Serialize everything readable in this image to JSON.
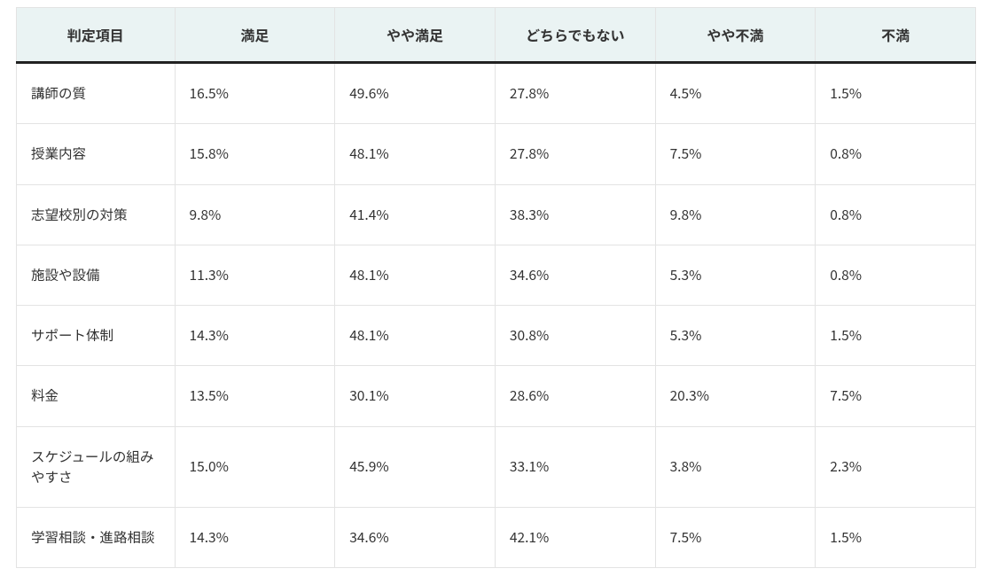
{
  "table": {
    "type": "table",
    "background_color": "#ffffff",
    "header_bg_color": "#eaf3f3",
    "border_color": "#e3e3e3",
    "header_bottom_border_color": "#222222",
    "text_color": "#333333",
    "header_fontsize": 16,
    "body_fontsize": 15.5,
    "header_font_weight": 700,
    "columns": [
      {
        "label": "判定項目",
        "width_pct": 16.5,
        "align": "center"
      },
      {
        "label": "満足",
        "width_pct": 16.7,
        "align": "center"
      },
      {
        "label": "やや満足",
        "width_pct": 16.7,
        "align": "center"
      },
      {
        "label": "どちらでもない",
        "width_pct": 16.7,
        "align": "center"
      },
      {
        "label": "やや不満",
        "width_pct": 16.7,
        "align": "center"
      },
      {
        "label": "不満",
        "width_pct": 16.7,
        "align": "center"
      }
    ],
    "rows": [
      [
        "講師の質",
        "16.5%",
        "49.6%",
        "27.8%",
        "4.5%",
        "1.5%"
      ],
      [
        "授業内容",
        "15.8%",
        "48.1%",
        "27.8%",
        "7.5%",
        "0.8%"
      ],
      [
        "志望校別の対策",
        "9.8%",
        "41.4%",
        "38.3%",
        "9.8%",
        "0.8%"
      ],
      [
        "施設や設備",
        "11.3%",
        "48.1%",
        "34.6%",
        "5.3%",
        "0.8%"
      ],
      [
        "サポート体制",
        "14.3%",
        "48.1%",
        "30.8%",
        "5.3%",
        "1.5%"
      ],
      [
        "料金",
        "13.5%",
        "30.1%",
        "28.6%",
        "20.3%",
        "7.5%"
      ],
      [
        "スケジュールの組みやすさ",
        "15.0%",
        "45.9%",
        "33.1%",
        "3.8%",
        "2.3%"
      ],
      [
        "学習相談・進路相談",
        "14.3%",
        "34.6%",
        "42.1%",
        "7.5%",
        "1.5%"
      ]
    ]
  }
}
